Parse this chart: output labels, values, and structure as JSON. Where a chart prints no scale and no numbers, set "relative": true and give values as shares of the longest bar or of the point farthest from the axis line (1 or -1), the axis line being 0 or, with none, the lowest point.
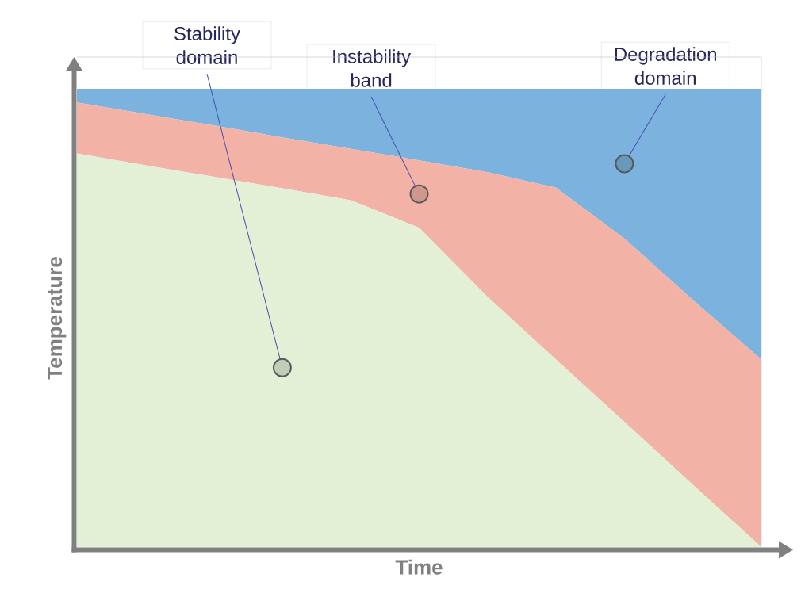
{
  "chart_data": {
    "type": "area",
    "relative": true,
    "stacked": true,
    "xlabel": "Time",
    "ylabel": "Temperature",
    "categories": [
      null,
      null,
      null,
      null,
      null,
      null,
      null,
      null,
      null,
      null,
      null
    ],
    "series": [
      {
        "name": "Stability domain",
        "color": "#e4f0d6",
        "values": [
          0.859,
          0.833,
          0.808,
          0.783,
          0.757,
          0.697,
          0.546,
          0.409,
          0.273,
          0.136,
          0
        ]
      },
      {
        "name": "Instability band",
        "color": "#f2b3a6",
        "values": [
          0.111,
          0.112,
          0.112,
          0.111,
          0.112,
          0.147,
          0.272,
          0.375,
          0.4,
          0.403,
          0.409
        ]
      },
      {
        "name": "Degradation domain",
        "color": "#7bb3de",
        "values": [
          0.03,
          0.055,
          0.08,
          0.106,
          0.131,
          0.156,
          0.182,
          0.216,
          0.327,
          0.461,
          0.591
        ]
      }
    ]
  }
}
